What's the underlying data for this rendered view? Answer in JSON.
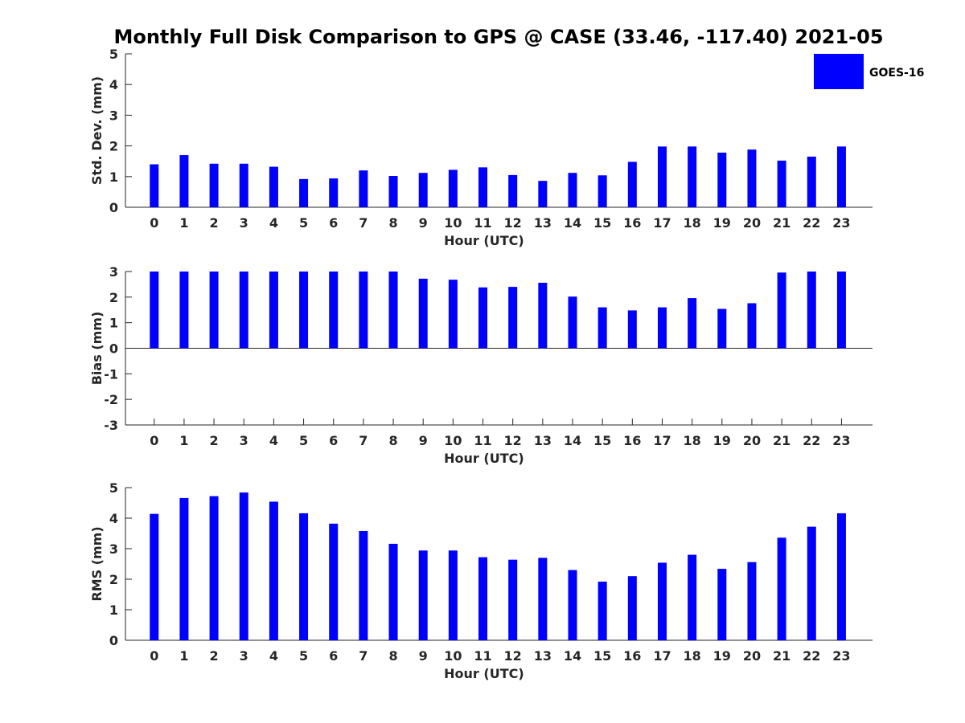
{
  "figure_title": "Monthly Full Disk Comparison to GPS @ CASE (33.46, -117.40) 2021-05",
  "legend": {
    "label": "GOES-16",
    "color": "#0000ff"
  },
  "chart_data": [
    {
      "type": "bar",
      "xlabel": "Hour (UTC)",
      "ylabel": "Std. Dev. (mm)",
      "ylim": [
        0,
        5
      ],
      "yticks": [
        "0",
        "1",
        "2",
        "3",
        "4",
        "5"
      ],
      "categories": [
        "0",
        "1",
        "2",
        "3",
        "4",
        "5",
        "6",
        "7",
        "8",
        "9",
        "10",
        "11",
        "12",
        "13",
        "14",
        "15",
        "16",
        "17",
        "18",
        "19",
        "20",
        "21",
        "22",
        "23"
      ],
      "series": [
        {
          "name": "GOES-16",
          "color": "#0000ff",
          "values": [
            1.4,
            1.7,
            1.42,
            1.42,
            1.32,
            0.92,
            0.94,
            1.2,
            1.02,
            1.12,
            1.22,
            1.3,
            1.05,
            0.86,
            1.12,
            1.04,
            1.48,
            1.98,
            1.98,
            1.78,
            1.88,
            1.52,
            1.65,
            1.98
          ]
        }
      ],
      "grid": false
    },
    {
      "type": "bar",
      "xlabel": "Hour (UTC)",
      "ylabel": "Bias (mm)",
      "ylim": [
        -3,
        3
      ],
      "yticks": [
        "-3",
        "-2",
        "-1",
        "0",
        "1",
        "2",
        "3"
      ],
      "categories": [
        "0",
        "1",
        "2",
        "3",
        "4",
        "5",
        "6",
        "7",
        "8",
        "9",
        "10",
        "11",
        "12",
        "13",
        "14",
        "15",
        "16",
        "17",
        "18",
        "19",
        "20",
        "21",
        "22",
        "23"
      ],
      "series": [
        {
          "name": "GOES-16",
          "color": "#0000ff",
          "values": [
            3.0,
            3.0,
            3.0,
            3.0,
            3.0,
            3.0,
            3.0,
            3.0,
            3.0,
            2.72,
            2.68,
            2.38,
            2.4,
            2.56,
            2.02,
            1.6,
            1.48,
            1.6,
            1.96,
            1.54,
            1.76,
            2.96,
            3.0,
            3.0
          ]
        }
      ],
      "grid": false
    },
    {
      "type": "bar",
      "xlabel": "Hour (UTC)",
      "ylabel": "RMS (mm)",
      "ylim": [
        0,
        5
      ],
      "yticks": [
        "0",
        "1",
        "2",
        "3",
        "4",
        "5"
      ],
      "categories": [
        "0",
        "1",
        "2",
        "3",
        "4",
        "5",
        "6",
        "7",
        "8",
        "9",
        "10",
        "11",
        "12",
        "13",
        "14",
        "15",
        "16",
        "17",
        "18",
        "19",
        "20",
        "21",
        "22",
        "23"
      ],
      "series": [
        {
          "name": "GOES-16",
          "color": "#0000ff",
          "values": [
            4.14,
            4.66,
            4.72,
            4.84,
            4.54,
            4.16,
            3.82,
            3.58,
            3.16,
            2.94,
            2.94,
            2.72,
            2.64,
            2.7,
            2.3,
            1.92,
            2.1,
            2.54,
            2.8,
            2.34,
            2.56,
            3.36,
            3.72,
            4.16
          ]
        }
      ],
      "grid": false
    }
  ]
}
